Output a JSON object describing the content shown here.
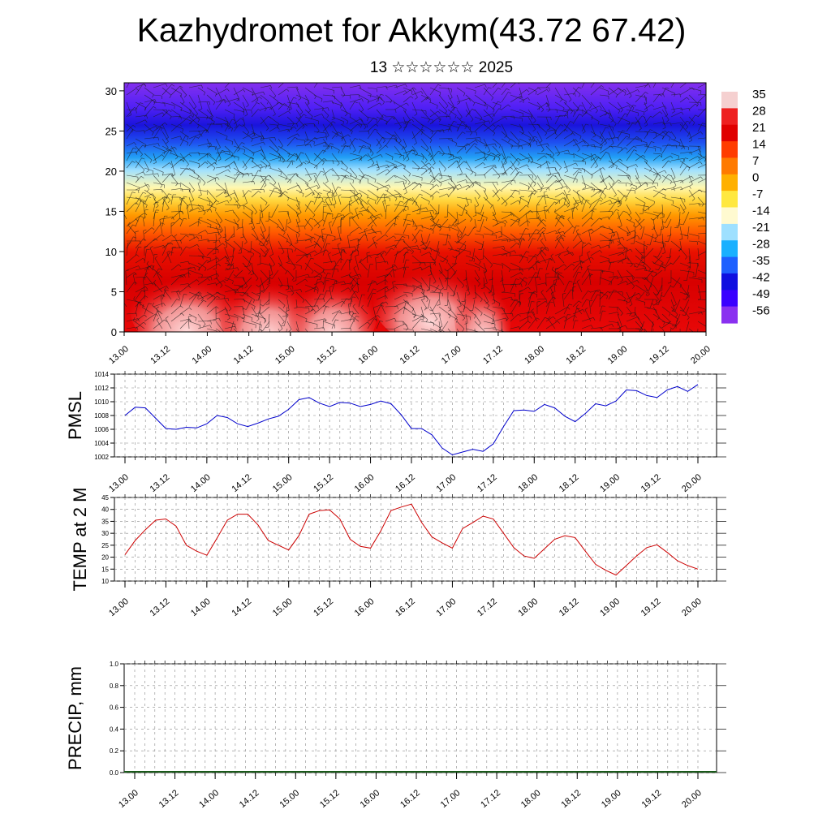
{
  "header": {
    "title": "Kazhydromet for Akkym(43.72 67.42)",
    "subtitle": "13 ☆☆☆☆☆☆ 2025"
  },
  "chart_data": [
    {
      "type": "heatmap",
      "name": "vertical-cross-section",
      "title": "",
      "xlabel": "",
      "ylabel": "",
      "x_ticks": [
        "13.00",
        "13.12",
        "14.00",
        "14.12",
        "15.00",
        "15.12",
        "16.00",
        "16.12",
        "17.00",
        "17.12",
        "18.00",
        "18.12",
        "19.00",
        "19.12",
        "20.00"
      ],
      "y_ticks": [
        0,
        5,
        10,
        15,
        20,
        25,
        30
      ],
      "ylim": [
        0,
        31
      ],
      "colorbar": {
        "labels": [
          "35",
          "28",
          "21",
          "14",
          "7",
          "0",
          "-7",
          "-14",
          "-21",
          "-28",
          "-35",
          "-42",
          "-49",
          "-56"
        ],
        "colors": [
          "#f5d0d0",
          "#ee2020",
          "#e00000",
          "#ff3c00",
          "#ff7a00",
          "#ffb000",
          "#ffe840",
          "#fffad0",
          "#9ee0ff",
          "#1ab0ff",
          "#1e60ff",
          "#1010e0",
          "#3a00ff",
          "#8a30f0"
        ]
      },
      "overlay": "wind barbs"
    },
    {
      "type": "line",
      "name": "pmsl",
      "ylabel": "PMSL",
      "color": "#0000cc",
      "ylim": [
        1002,
        1014
      ],
      "y_ticks": [
        1002,
        1004,
        1006,
        1008,
        1010,
        1012,
        1014
      ],
      "x_ticks": [
        "13.00",
        "13.12",
        "14.00",
        "14.12",
        "15.00",
        "15.12",
        "16.00",
        "16.12",
        "17.00",
        "17.12",
        "18.00",
        "18.12",
        "19.00",
        "19.12",
        "20.00"
      ],
      "values": [
        1008,
        1009.2,
        1009.1,
        1007.6,
        1006.1,
        1006.0,
        1006.3,
        1006.2,
        1006.8,
        1008.0,
        1007.7,
        1006.8,
        1006.4,
        1006.9,
        1007.5,
        1007.9,
        1008.9,
        1010.3,
        1010.6,
        1009.8,
        1009.3,
        1009.9,
        1009.8,
        1009.3,
        1009.6,
        1010.1,
        1009.7,
        1008.1,
        1006.1,
        1006.1,
        1005.2,
        1003.3,
        1002.3,
        1002.7,
        1003.1,
        1002.8,
        1003.9,
        1006.4,
        1008.7,
        1008.8,
        1008.6,
        1009.6,
        1009.1,
        1007.9,
        1007.1,
        1008.3,
        1009.7,
        1009.4,
        1010.1,
        1011.7,
        1011.6,
        1010.9,
        1010.6,
        1011.7,
        1012.2,
        1011.5,
        1012.5
      ]
    },
    {
      "type": "line",
      "name": "temp-2m",
      "ylabel": "TEMP at 2 M",
      "color": "#cc0000",
      "ylim": [
        10,
        45
      ],
      "y_ticks": [
        10,
        15,
        20,
        25,
        30,
        35,
        40,
        45
      ],
      "x_ticks": [
        "13.00",
        "13.12",
        "14.00",
        "14.12",
        "15.00",
        "15.12",
        "16.00",
        "16.12",
        "17.00",
        "17.12",
        "18.00",
        "18.12",
        "19.00",
        "19.12",
        "20.00"
      ],
      "values": [
        21,
        27,
        31.5,
        35.5,
        36,
        33,
        25,
        22.5,
        20.8,
        28,
        35.5,
        38,
        38,
        33.5,
        27,
        25,
        23,
        29,
        38,
        39.5,
        39.8,
        36,
        27.5,
        24.5,
        23.8,
        31,
        39.5,
        41,
        42.2,
        34.5,
        28.5,
        26,
        23.8,
        32,
        34.5,
        37.2,
        36,
        30,
        24,
        20.5,
        19.5,
        23.5,
        27.5,
        29,
        28.2,
        22.5,
        17,
        14.5,
        12.5,
        16.5,
        20.5,
        24,
        25.2,
        22,
        18.5,
        16.5,
        15
      ]
    },
    {
      "type": "bar",
      "name": "precip",
      "ylabel": "PRECIP, mm",
      "ylim": [
        0,
        1
      ],
      "y_ticks": [
        "0.0",
        "0.2",
        "0.4",
        "0.6",
        "0.8",
        "1.0"
      ],
      "x_ticks": [
        "13.00",
        "13.12",
        "14.00",
        "14.12",
        "15.00",
        "15.12",
        "16.00",
        "16.12",
        "17.00",
        "17.12",
        "18.00",
        "18.12",
        "19.00",
        "19.12",
        "20.00"
      ],
      "values": [
        0,
        0,
        0,
        0,
        0,
        0,
        0,
        0,
        0,
        0,
        0,
        0,
        0,
        0,
        0,
        0,
        0,
        0,
        0,
        0,
        0,
        0,
        0,
        0,
        0,
        0,
        0,
        0,
        0,
        0,
        0,
        0,
        0,
        0,
        0,
        0,
        0,
        0,
        0,
        0,
        0,
        0,
        0,
        0,
        0,
        0,
        0,
        0,
        0,
        0,
        0,
        0,
        0,
        0,
        0,
        0
      ]
    }
  ]
}
